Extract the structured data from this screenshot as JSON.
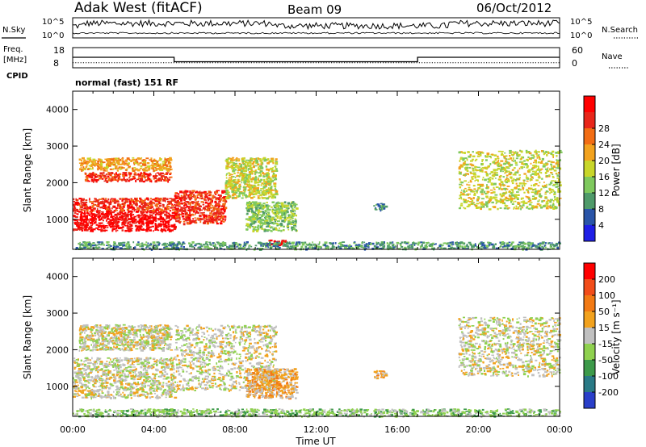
{
  "header": {
    "station": "Adak West (fitACF)",
    "beam": "Beam 09",
    "date": "06/Oct/2012"
  },
  "top_panels": {
    "nsky_label": "N.Sky",
    "nsearch_label": "N.Search",
    "nsky_ticks": [
      "10^5",
      "10^0"
    ],
    "freq_label": [
      "Freq.",
      "[MHz]"
    ],
    "freq_ticks": [
      "18",
      "8"
    ],
    "nave_label": "Nave",
    "nave_ticks": [
      "60",
      "0"
    ],
    "cpid_label": "CPID",
    "cpid_text": "normal (fast) 151 RF"
  },
  "chart_data": [
    {
      "type": "line",
      "title": "",
      "ylabel": "Freq. [MHz]",
      "xlim": [
        0,
        24
      ],
      "ylim": [
        8,
        18
      ],
      "series": [
        {
          "x": [
            0,
            5,
            5,
            17,
            17,
            24
          ],
          "values": [
            13.2,
            13.2,
            11.0,
            11.0,
            13.2,
            13.2
          ],
          "style": "solid"
        },
        {
          "x": [
            0,
            24
          ],
          "values": [
            10.5,
            10.5
          ],
          "style": "dotted"
        }
      ]
    },
    {
      "type": "heatmap",
      "quantity": "Power",
      "xlabel": "Time UT",
      "ylabel": "Slant Range [km]",
      "colorbar_label": "Power [dB]",
      "xlim": [
        0,
        24
      ],
      "ylim": [
        180,
        4500
      ],
      "x_ticks": [
        "00:00",
        "04:00",
        "08:00",
        "12:00",
        "16:00",
        "20:00",
        "00:00"
      ],
      "y_ticks": [
        1000,
        2000,
        3000,
        4000
      ],
      "colorbar_ticks": [
        "4",
        "8",
        "12",
        "16",
        "20",
        "24",
        "28"
      ],
      "colors": [
        "#1f1fe6",
        "#2a55a8",
        "#4f9a6a",
        "#7fc95e",
        "#c8d62a",
        "#f2a21e",
        "#f26d14",
        "#e8261a",
        "#ff0000"
      ],
      "regions": [
        {
          "t": [
            0.0,
            5.0
          ],
          "r": [
            700,
            1250
          ],
          "level": 8
        },
        {
          "t": [
            0.0,
            5.0
          ],
          "r": [
            1250,
            1600
          ],
          "level": 7
        },
        {
          "t": [
            0.5,
            4.8
          ],
          "r": [
            2050,
            2300
          ],
          "level": 7
        },
        {
          "t": [
            0.3,
            4.8
          ],
          "r": [
            2350,
            2700
          ],
          "level": 5
        },
        {
          "t": [
            5.0,
            7.5
          ],
          "r": [
            900,
            1800
          ],
          "level": 7
        },
        {
          "t": [
            7.5,
            10.0
          ],
          "r": [
            1600,
            2700
          ],
          "level": 4
        },
        {
          "t": [
            8.5,
            11.0
          ],
          "r": [
            700,
            1500
          ],
          "level": 3
        },
        {
          "t": [
            9.5,
            10.5
          ],
          "r": [
            300,
            450
          ],
          "level": 8
        },
        {
          "t": [
            14.8,
            15.4
          ],
          "r": [
            1250,
            1450
          ],
          "level": 2
        },
        {
          "t": [
            19.0,
            24.0
          ],
          "r": [
            1300,
            2900
          ],
          "level": 4
        },
        {
          "t": [
            0.0,
            24.0
          ],
          "r": [
            200,
            400
          ],
          "level": 2
        }
      ]
    },
    {
      "type": "heatmap",
      "quantity": "Velocity",
      "xlabel": "Time UT",
      "ylabel": "Slant Range [km]",
      "colorbar_label": "Velocity [m s⁻¹]",
      "xlim": [
        0,
        24
      ],
      "ylim": [
        180,
        4500
      ],
      "x_ticks": [
        "00:00",
        "04:00",
        "08:00",
        "12:00",
        "16:00",
        "20:00",
        "00:00"
      ],
      "y_ticks": [
        1000,
        2000,
        3000,
        4000
      ],
      "colorbar_ticks": [
        "200",
        "100",
        "50",
        "15",
        "-15",
        "-50",
        "-100",
        "-200"
      ],
      "colors": [
        "#2a3fc9",
        "#2a7a86",
        "#3d9a4a",
        "#8fd14f",
        "#c0c0c0",
        "#f2a21e",
        "#f27a14",
        "#f24d1a",
        "#ff0000"
      ],
      "regions": [
        {
          "t": [
            0.0,
            5.0
          ],
          "r": [
            700,
            1800
          ],
          "level": 4
        },
        {
          "t": [
            0.3,
            4.8
          ],
          "r": [
            2000,
            2700
          ],
          "level": 4
        },
        {
          "t": [
            5.0,
            10.0
          ],
          "r": [
            900,
            2700
          ],
          "level": 4
        },
        {
          "t": [
            8.5,
            11.0
          ],
          "r": [
            700,
            1500
          ],
          "level": 5
        },
        {
          "t": [
            14.8,
            15.4
          ],
          "r": [
            1250,
            1450
          ],
          "level": 5
        },
        {
          "t": [
            19.0,
            24.0
          ],
          "r": [
            1300,
            2900
          ],
          "level": 4
        },
        {
          "t": [
            0.0,
            24.0
          ],
          "r": [
            200,
            400
          ],
          "level": 3
        }
      ]
    }
  ]
}
